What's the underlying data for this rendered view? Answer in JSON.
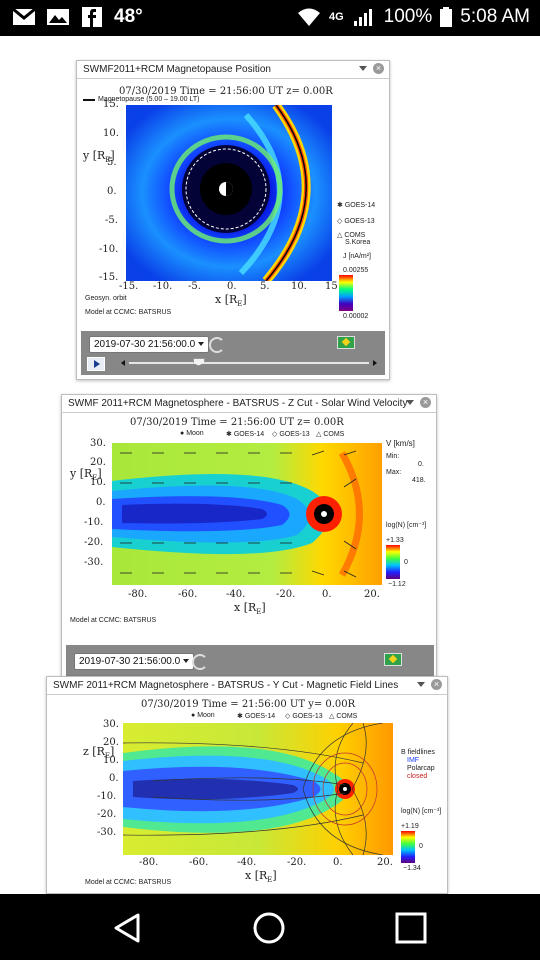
{
  "status_bar": {
    "temperature": "48°",
    "network": "4G",
    "battery": "100%",
    "time": "5:08 AM",
    "icons": [
      "gmail-icon",
      "gallery-icon",
      "facebook-icon",
      "wifi-icon",
      "signal-icon",
      "battery-icon"
    ]
  },
  "widgets": [
    {
      "title": "SWMF2011+RCM Magnetopause Position",
      "plot_title": "07/30/2019 Time = 21:56:00 UT z= 0.00R",
      "legend_top": "Magnetopause (5.00 – 19.00 LT)",
      "ylabel": "y [R",
      "xlabel": "x [R",
      "y_ticks": [
        "15.",
        "10.",
        "5.",
        "0.",
        "-5.",
        "-10.",
        "-15."
      ],
      "x_ticks": [
        "-15.",
        "-10.",
        "-5.",
        "0.",
        "5.",
        "10.",
        "15"
      ],
      "markers": [
        "GOES-14",
        "GOES-13",
        "COMS",
        "S.Korea"
      ],
      "colorbar_unit": "J [nA/m²]",
      "colorbar_max": "0.00255",
      "colorbar_min": "0.00002",
      "orbit_label": "Geosyn. orbit",
      "credit": "Model at CCMC: BATSRUS",
      "time_value": "2019-07-30 21:56:00.0",
      "slider_fraction": 0.29
    },
    {
      "title": "SWMF 2011+RCM Magnetosphere - BATSRUS - Z Cut - Solar Wind Velocity",
      "plot_title": "07/30/2019 Time = 21:56:00 UT z= 0.00R",
      "legend": [
        "Moon",
        "GOES-14",
        "GOES-13",
        "COMS"
      ],
      "ylabel": "y [R",
      "xlabel": "x [R",
      "y_ticks": [
        "30.",
        "20.",
        "10.",
        "0.",
        "-10.",
        "-20.",
        "-30."
      ],
      "x_ticks": [
        "-80.",
        "-60.",
        "-40.",
        "-20.",
        "0.",
        "20."
      ],
      "vec_label": "V [km/s]",
      "min_label": "Min:",
      "min_value": "0.",
      "max_label": "Max:",
      "max_value": "418.",
      "colorbar_unit": "log(N) [cm⁻³]",
      "colorbar_max": "+1.33",
      "colorbar_mid": "0",
      "colorbar_min": "−1.12",
      "credit": "Model at CCMC: BATSRUS",
      "time_value": "2019-07-30 21:56:00.0",
      "slider_fraction": 0.25
    },
    {
      "title": "SWMF 2011+RCM Magnetosphere - BATSRUS - Y Cut - Magnetic Field Lines",
      "plot_title": "07/30/2019 Time = 21:56:00 UT y= 0.00R",
      "legend": [
        "Moon",
        "GOES-14",
        "GOES-13",
        "COMS"
      ],
      "ylabel": "z [R",
      "xlabel": "x [R",
      "y_ticks": [
        "30.",
        "20.",
        "10.",
        "0.",
        "-10.",
        "-20.",
        "-30."
      ],
      "x_ticks": [
        "-80.",
        "-60.",
        "-40.",
        "-20.",
        "0.",
        "20."
      ],
      "fieldlines_title": "B fieldlines",
      "fieldlines": [
        "IMF",
        "Polarcap",
        "closed"
      ],
      "colorbar_unit": "log(N) [cm⁻³]",
      "colorbar_max": "+1.19",
      "colorbar_mid": "0",
      "colorbar_min": "−1.34",
      "credit": "Model at CCMC: BATSRUS"
    }
  ],
  "colors": {
    "statusbar_bg": "#000000",
    "control_bar": "#878787",
    "play_icon": "#1a3d8f"
  }
}
